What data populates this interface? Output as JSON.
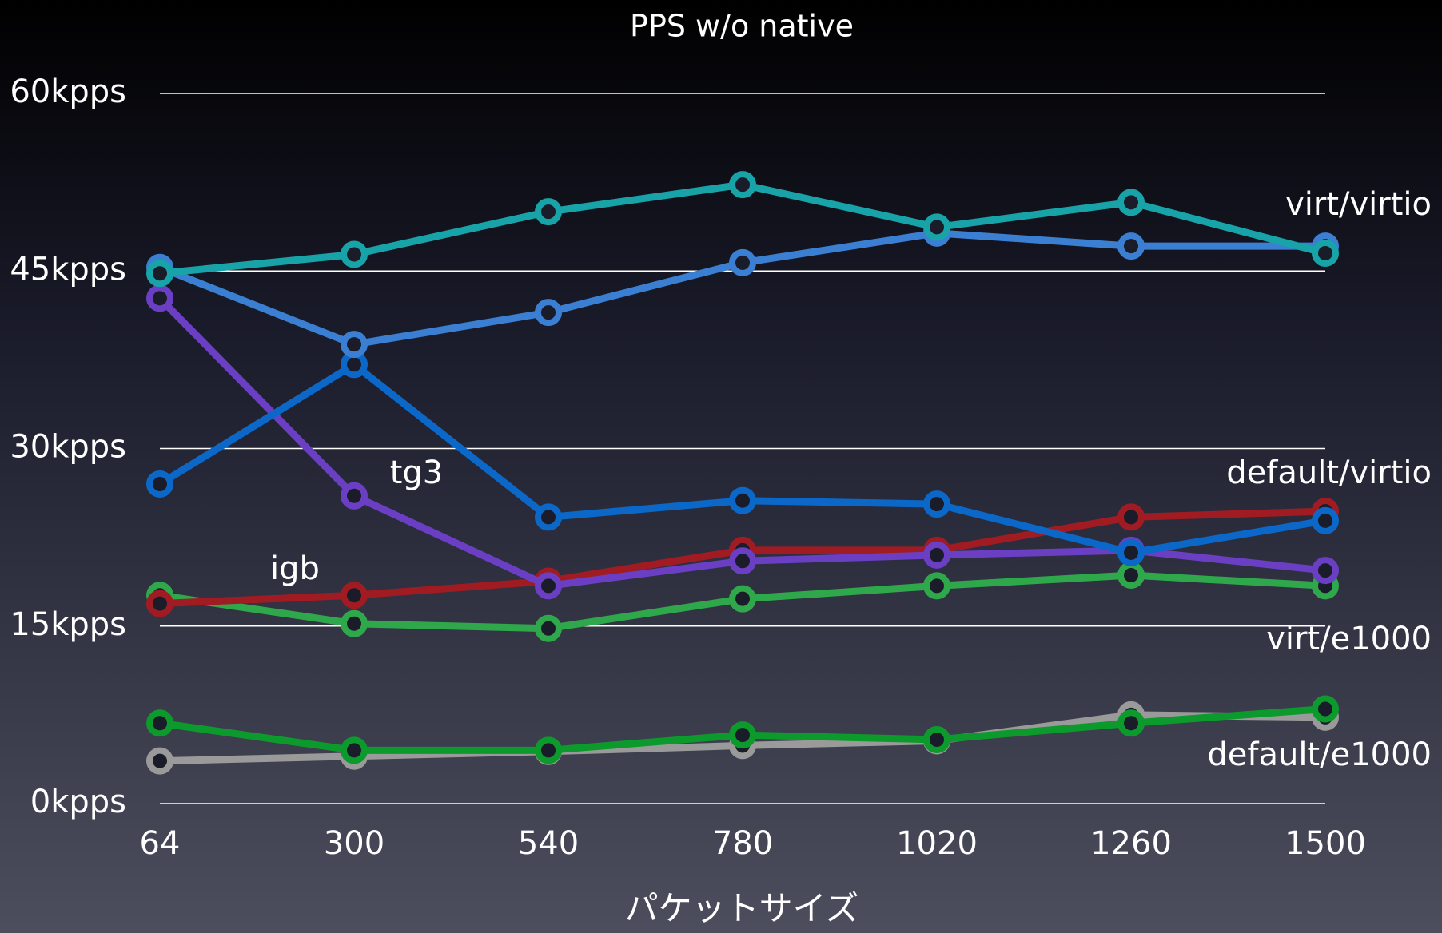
{
  "chart_data": {
    "type": "line",
    "title": "PPS w/o native",
    "x_label": "パケットサイズ",
    "categories": [
      "64",
      "300",
      "540",
      "780",
      "1020",
      "1260",
      "1500"
    ],
    "ylim": [
      0,
      60
    ],
    "yticks": [
      {
        "value": 0,
        "label": "0kpps"
      },
      {
        "value": 15,
        "label": "15kpps"
      },
      {
        "value": 30,
        "label": "30kpps"
      },
      {
        "value": 45,
        "label": "45kpps"
      },
      {
        "value": 60,
        "label": "60kpps"
      }
    ],
    "grid": true,
    "series": [
      {
        "color": "#9a9a9a",
        "values": [
          3.6,
          4.0,
          4.4,
          4.9,
          5.3,
          7.5,
          7.3
        ]
      },
      {
        "color": "#0c9a2c",
        "values": [
          6.8,
          4.5,
          4.5,
          5.8,
          5.4,
          6.8,
          8.0
        ]
      },
      {
        "color": "#2fa84c",
        "values": [
          17.6,
          15.2,
          14.8,
          17.3,
          18.4,
          19.3,
          18.4
        ]
      },
      {
        "color": "#a01c22",
        "values": [
          16.9,
          17.6,
          18.8,
          21.4,
          21.4,
          24.2,
          24.7
        ]
      },
      {
        "color": "#6a3fc4",
        "values": [
          42.7,
          26.0,
          18.4,
          20.5,
          21.0,
          21.4,
          19.7
        ]
      },
      {
        "color": "#0b68c8",
        "values": [
          27.0,
          37.1,
          24.2,
          25.6,
          25.3,
          21.2,
          23.9
        ]
      },
      {
        "color": "#3a7fd2",
        "values": [
          45.3,
          38.8,
          41.5,
          45.7,
          48.2,
          47.1,
          47.1
        ]
      },
      {
        "color": "#17a3a8",
        "values": [
          44.8,
          46.4,
          50.0,
          52.3,
          48.7,
          50.8,
          46.5
        ]
      }
    ],
    "annotations": [
      "virt/virtio",
      "default/virtio",
      "virt/e1000",
      "default/e1000",
      "tg3",
      "igb"
    ]
  }
}
